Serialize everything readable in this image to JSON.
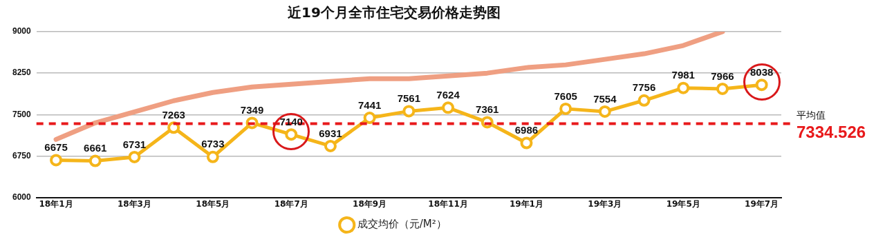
{
  "chart_data": {
    "type": "line",
    "title": "近19个月全市住宅交易价格走势图",
    "categories": [
      "18年1月",
      null,
      "18年3月",
      null,
      "18年5月",
      null,
      "18年7月",
      null,
      "18年9月",
      null,
      "18年11月",
      null,
      "19年1月",
      null,
      "19年3月",
      null,
      "19年5月",
      null,
      "19年7月"
    ],
    "series": [
      {
        "name": "成交均价（元/M²）",
        "color": "#f5b51a",
        "marker": "circle",
        "values": [
          6675,
          6661,
          6731,
          7263,
          6733,
          7349,
          7140,
          6931,
          7441,
          7561,
          7624,
          7361,
          6986,
          7605,
          7554,
          7756,
          7981,
          7966,
          8038
        ],
        "value_labels": [
          "6675",
          "6661",
          "6731",
          "7263",
          "6733",
          "7349",
          "7140",
          "6931",
          "7441",
          "7561",
          "7624",
          "7361",
          "6986",
          "7605",
          "7554",
          "7756",
          "7981",
          "7966",
          "8038"
        ]
      },
      {
        "color": "#ef9f82",
        "marker": "none",
        "values": [
          7050,
          7350,
          7550,
          7750,
          7900,
          8000,
          8050,
          8100,
          8150,
          8150,
          8200,
          8250,
          8350,
          8400,
          8500,
          8600,
          8750,
          9000,
          null
        ]
      }
    ],
    "ylim": [
      6000,
      9000
    ],
    "yticks": [
      6000,
      6750,
      7500,
      8250,
      9000
    ],
    "grid": "y",
    "legend": "bottom",
    "ref_lines": [
      {
        "axis": "y",
        "value": 7334.526,
        "label": "平均值",
        "color": "#e8191b",
        "line_style": "dashed"
      }
    ],
    "annotations": [
      "7334.526"
    ]
  }
}
